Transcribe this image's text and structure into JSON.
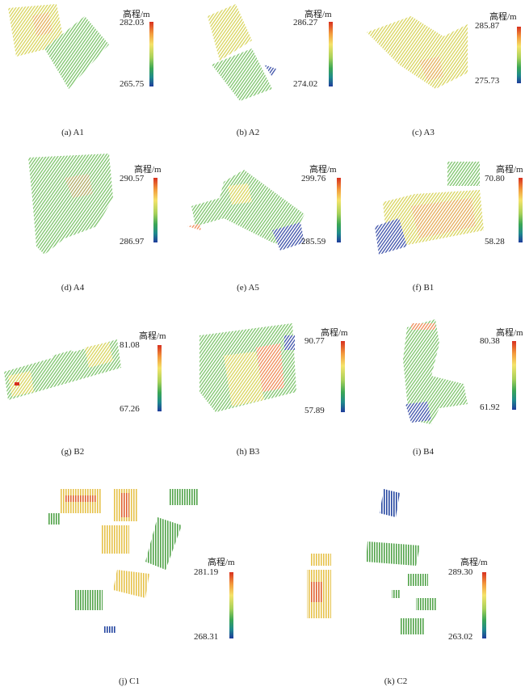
{
  "unit_label": "高程/m",
  "panels": [
    {
      "caption": "(a) A1",
      "max": "282.03",
      "min": "265.75"
    },
    {
      "caption": "(b) A2",
      "max": "286.27",
      "min": "274.02"
    },
    {
      "caption": "(c) A3",
      "max": "285.87",
      "min": "275.73"
    },
    {
      "caption": "(d) A4",
      "max": "290.57",
      "min": "286.97"
    },
    {
      "caption": "(e) A5",
      "max": "299.76",
      "min": "285.59"
    },
    {
      "caption": "(f) B1",
      "max": "70.80",
      "min": "58.28"
    },
    {
      "caption": "(g) B2",
      "max": "81.08",
      "min": "67.26"
    },
    {
      "caption": "(h) B3",
      "max": "90.77",
      "min": "57.89"
    },
    {
      "caption": "(i) B4",
      "max": "80.38",
      "min": "61.92"
    },
    {
      "caption": "(j) C1",
      "max": "281.19",
      "min": "268.31"
    },
    {
      "caption": "(k) C2",
      "max": "289.30",
      "min": "263.02"
    }
  ]
}
